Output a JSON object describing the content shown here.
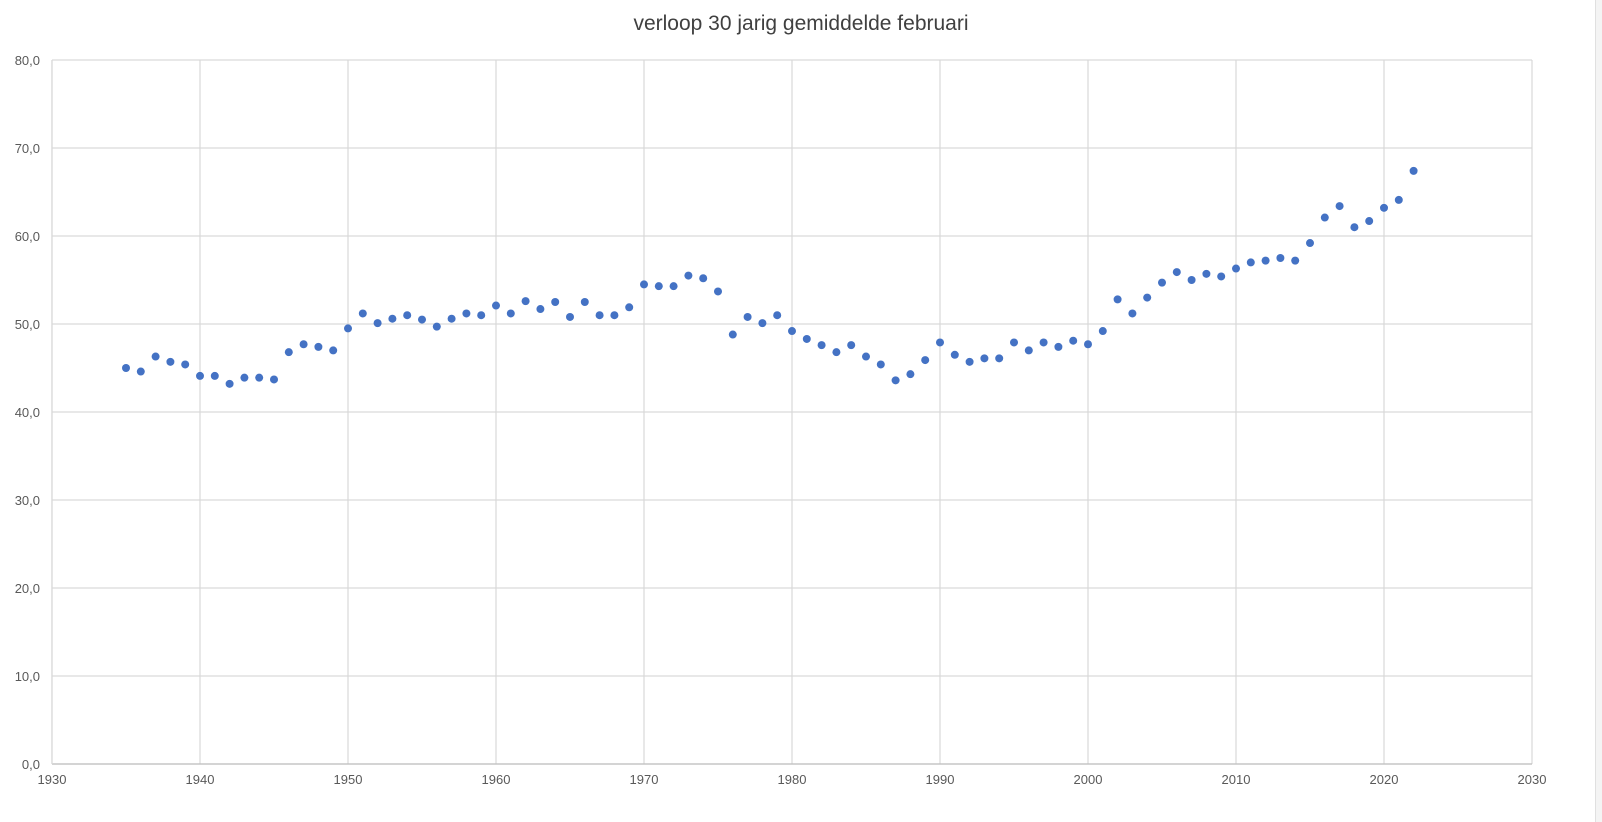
{
  "chart_data": {
    "type": "scatter",
    "title": "verloop 30 jarig gemiddelde februari",
    "xlabel": "",
    "ylabel": "",
    "xlim": [
      1930,
      2030
    ],
    "ylim": [
      0,
      80
    ],
    "x_ticks": [
      1930,
      1940,
      1950,
      1960,
      1970,
      1980,
      1990,
      2000,
      2010,
      2020,
      2030
    ],
    "x_tick_labels": [
      "1930",
      "1940",
      "1950",
      "1960",
      "1970",
      "1980",
      "1990",
      "2000",
      "2010",
      "2020",
      "2030"
    ],
    "y_ticks": [
      0,
      10,
      20,
      30,
      40,
      50,
      60,
      70,
      80
    ],
    "y_tick_labels": [
      "0,0",
      "10,0",
      "20,0",
      "30,0",
      "40,0",
      "50,0",
      "60,0",
      "70,0",
      "80,0"
    ],
    "grid": true,
    "legend": "none",
    "marker_color": "#4472C4",
    "series": [
      {
        "x": [
          1935,
          1936,
          1937,
          1938,
          1939,
          1940,
          1941,
          1942,
          1943,
          1944,
          1945,
          1946,
          1947,
          1948,
          1949,
          1950,
          1951,
          1952,
          1953,
          1954,
          1955,
          1956,
          1957,
          1958,
          1959,
          1960,
          1961,
          1962,
          1963,
          1964,
          1965,
          1966,
          1967,
          1968,
          1969,
          1970,
          1971,
          1972,
          1973,
          1974,
          1975,
          1976,
          1977,
          1978,
          1979,
          1980,
          1981,
          1982,
          1983,
          1984,
          1985,
          1986,
          1987,
          1988,
          1989,
          1990,
          1991,
          1992,
          1993,
          1994,
          1995,
          1996,
          1997,
          1998,
          1999,
          2000,
          2001,
          2002,
          2003,
          2004,
          2005,
          2006,
          2007,
          2008,
          2009,
          2010,
          2011,
          2012,
          2013,
          2014,
          2015,
          2016,
          2017,
          2018,
          2019,
          2020,
          2021,
          2022
        ],
        "y": [
          45.0,
          44.6,
          46.3,
          45.7,
          45.4,
          44.1,
          44.1,
          43.2,
          43.9,
          43.9,
          43.7,
          46.8,
          47.7,
          47.4,
          47.0,
          49.5,
          51.2,
          50.1,
          50.6,
          51.0,
          50.5,
          49.7,
          50.6,
          51.2,
          51.0,
          52.1,
          51.2,
          52.6,
          51.7,
          52.5,
          50.8,
          52.5,
          51.0,
          51.0,
          51.9,
          54.5,
          54.3,
          54.3,
          55.5,
          55.2,
          53.7,
          48.8,
          50.8,
          50.1,
          51.0,
          49.2,
          48.3,
          47.6,
          46.8,
          47.6,
          46.3,
          45.4,
          43.6,
          44.3,
          45.9,
          47.9,
          46.5,
          45.7,
          46.1,
          46.1,
          47.9,
          47.0,
          47.9,
          47.4,
          48.1,
          47.7,
          49.2,
          52.8,
          51.2,
          53.0,
          54.7,
          55.9,
          55.0,
          55.7,
          55.4,
          56.3,
          57.0,
          57.2,
          57.5,
          57.2,
          59.2,
          62.1,
          63.4,
          61.0,
          61.7,
          63.2,
          64.1,
          67.4
        ]
      }
    ]
  }
}
